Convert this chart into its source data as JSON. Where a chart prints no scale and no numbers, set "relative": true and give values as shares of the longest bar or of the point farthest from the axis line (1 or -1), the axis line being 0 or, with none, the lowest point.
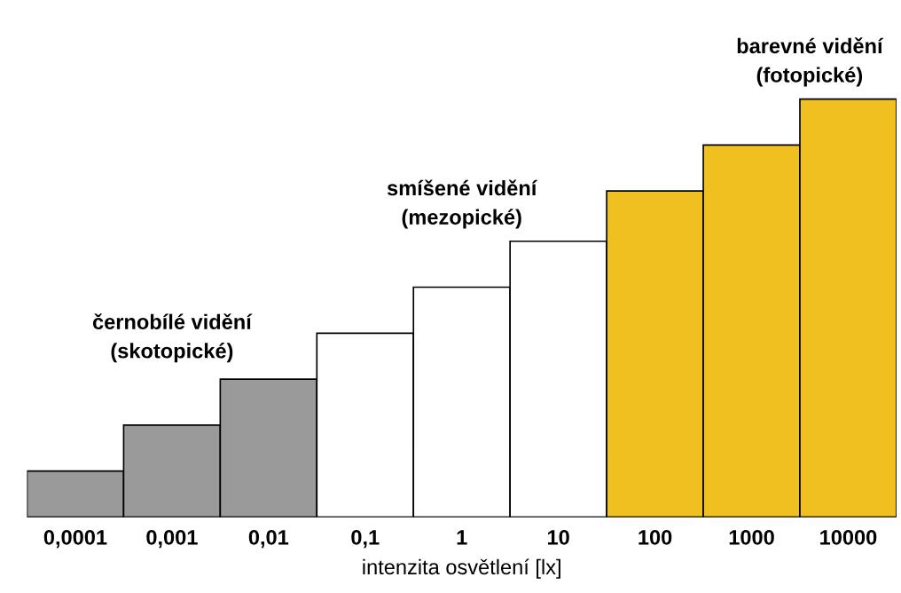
{
  "chart_data": {
    "type": "bar",
    "relative": true,
    "xlabel": "intenzita osvětlení [lx]",
    "categories": [
      "0,0001",
      "0,001",
      "0,01",
      "0,1",
      "1",
      "10",
      "100",
      "1000",
      "10000"
    ],
    "values": [
      0.11,
      0.22,
      0.33,
      0.44,
      0.55,
      0.66,
      0.78,
      0.89,
      1
    ],
    "colors": [
      "#9a9a9a",
      "#9a9a9a",
      "#9a9a9a",
      "#ffffff",
      "#ffffff",
      "#ffffff",
      "#f0c020",
      "#f0c020",
      "#f0c020"
    ],
    "annotations": [
      "černobílé vidění\n(skotopické)",
      "smíšené vidění\n(mezopické)",
      "barevné vidění\n(fotopické)"
    ],
    "grid": false,
    "legend": false
  }
}
